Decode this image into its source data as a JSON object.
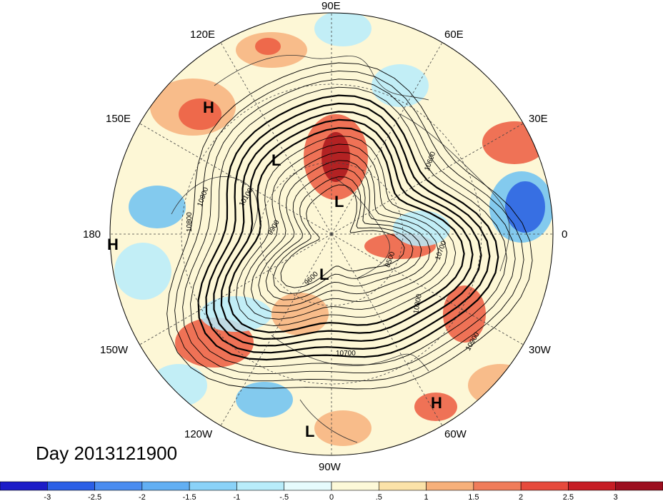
{
  "map": {
    "day_label": "Day 2013121900",
    "longitude_labels": [
      "90E",
      "60E",
      "30E",
      "0",
      "30W",
      "60W",
      "90W",
      "120W",
      "150W",
      "180",
      "150E",
      "120E"
    ],
    "contour_labels": [
      "10800",
      "10100",
      "9900",
      "10800",
      "9500",
      "10700",
      "10800",
      "10700",
      "10900",
      "10600",
      "9600"
    ],
    "pressure_centers": [
      "H",
      "L",
      "L",
      "L",
      "H",
      "L",
      "H"
    ],
    "colors": {
      "ocean_land_neutral": "#fdf7d6",
      "light_blue": "#b7ecfb",
      "mid_blue": "#6dc2f2",
      "deep_blue": "#2a5fe0",
      "light_red": "#f7b27c",
      "mid_red": "#ec5a3f",
      "deep_red": "#a8141a",
      "contour": "#000000",
      "coastline": "#333333"
    }
  },
  "colorbar": {
    "tick_labels": [
      "-3",
      "-2.5",
      "-2",
      "-1.5",
      "-1",
      "-.5",
      "0",
      ".5",
      "1",
      "1.5",
      "2",
      "2.5",
      "3"
    ],
    "colors": [
      "#1c1cc8",
      "#2b5fe6",
      "#4a8cf0",
      "#62aff3",
      "#8ad2f8",
      "#b8ecfa",
      "#e6fbfd",
      "#fdf9d8",
      "#fbe2a8",
      "#f7b07a",
      "#f07c5a",
      "#e64a3c",
      "#c61d24",
      "#9c0e1e"
    ]
  }
}
